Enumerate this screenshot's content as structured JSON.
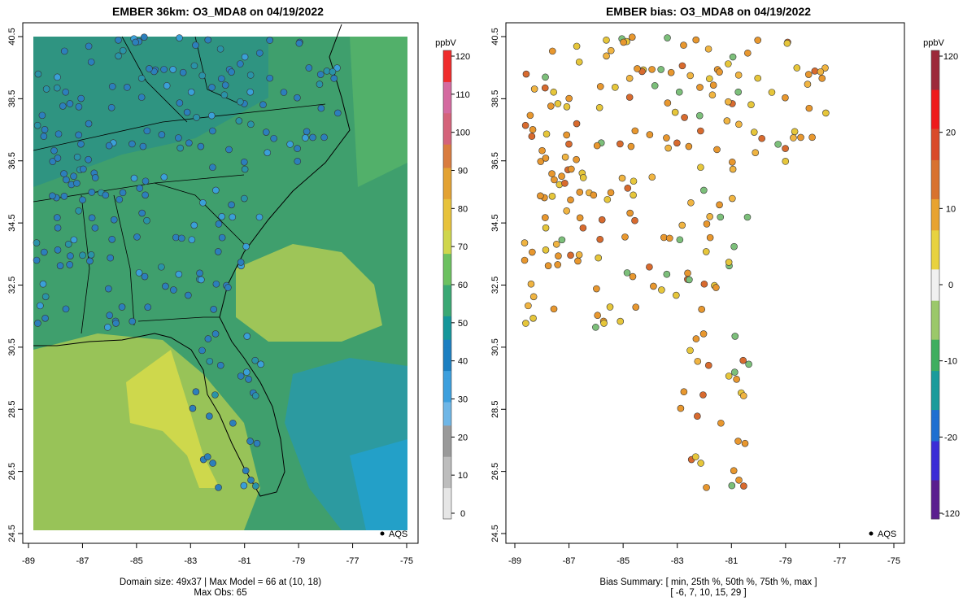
{
  "left": {
    "title": "EMBER 36km: O3_MDA8 on 04/19/2022",
    "footer_line1": "Domain size: 49x37 | Max Model = 66 at (10, 18)",
    "footer_line2": "Max Obs: 65",
    "legend_unit": "ppbV",
    "legend_ticks": [
      "0",
      "10",
      "20",
      "30",
      "40",
      "50",
      "60",
      "70",
      "80",
      "90",
      "100",
      "110",
      "120"
    ],
    "legend_entry": "AQS",
    "colors": {
      "land": "#4aa870",
      "ocean_low": "#23a0c8",
      "high_patch": "#a8c955",
      "peak": "#d7dc4a",
      "obs": "#2c7fbc"
    }
  },
  "right": {
    "title": "EMBER bias: O3_MDA8 on 04/19/2022",
    "footer_line1": "Bias Summary: [ min, 25th %, 50th %, 75th %, max ]",
    "footer_line2": "[ -6,  7,  10,  15,  29 ]",
    "legend_unit": "ppbV",
    "legend_ticks": [
      "-120",
      "-20",
      "-10",
      "0",
      "10",
      "20",
      "120"
    ],
    "legend_entry": "AQS",
    "colors": {
      "low_bias": "#e6c63a",
      "mid_bias": "#e8972e",
      "high_bias": "#d86a2e",
      "neg_bias": "#7cbf7a"
    }
  },
  "axes": {
    "x_ticks": [
      "-89",
      "-87",
      "-85",
      "-83",
      "-81",
      "-79",
      "-77",
      "-75"
    ],
    "y_ticks": [
      "24.5",
      "26.5",
      "28.5",
      "30.5",
      "32.5",
      "34.5",
      "36.5",
      "38.5",
      "40.5"
    ],
    "lon_range": [
      -89.2,
      -74.8
    ],
    "lat_range": [
      24.35,
      40.7
    ]
  },
  "summary": {
    "bias_stats": {
      "min": -6,
      "p25": 7,
      "median": 10,
      "p75": 15,
      "max": 29
    },
    "max_model": 66,
    "max_obs": 65
  }
}
